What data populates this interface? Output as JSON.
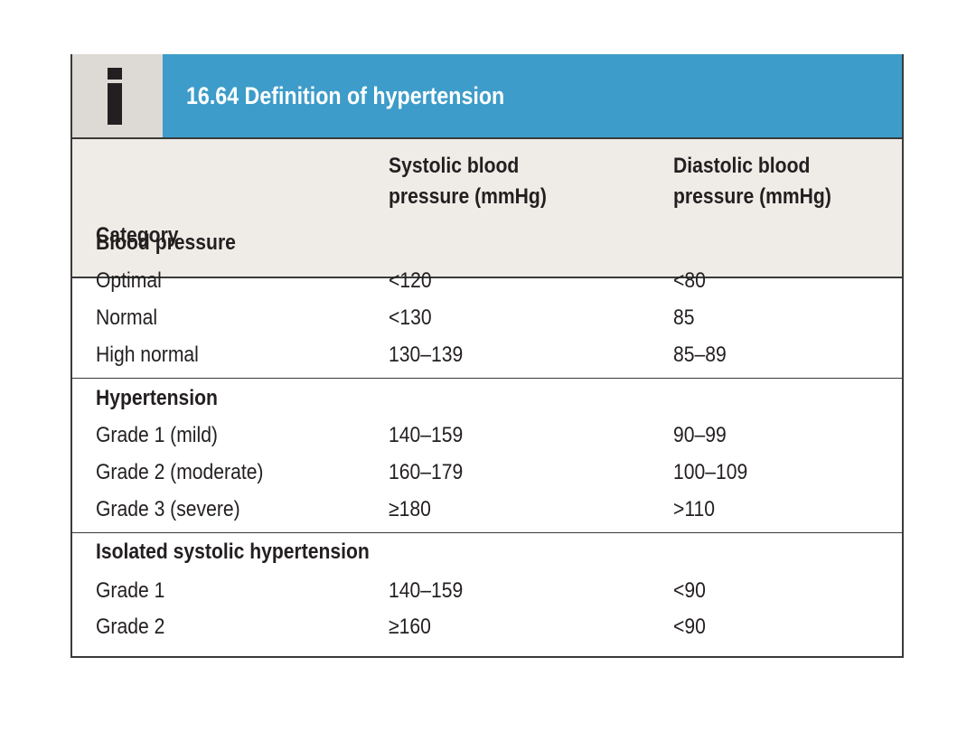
{
  "box": {
    "title": "16.64  Definition of hypertension",
    "icon": "info-i-icon"
  },
  "columns": {
    "category": "Category",
    "systolic_line1": "Systolic blood",
    "systolic_line2": "pressure (mmHg)",
    "diastolic_line1": "Diastolic blood",
    "diastolic_line2": "pressure (mmHg)"
  },
  "sections": [
    {
      "heading": "Blood pressure",
      "rows": [
        {
          "category": "Optimal",
          "systolic": "<120",
          "diastolic": "<80"
        },
        {
          "category": "Normal",
          "systolic": "<130",
          "diastolic": "85"
        },
        {
          "category": "High normal",
          "systolic": "130–139",
          "diastolic": "85–89"
        }
      ]
    },
    {
      "heading": "Hypertension",
      "rows": [
        {
          "category": "Grade 1 (mild)",
          "systolic": "140–159",
          "diastolic": "90–99"
        },
        {
          "category": "Grade 2 (moderate)",
          "systolic": "160–179",
          "diastolic": "100–109"
        },
        {
          "category": "Grade 3 (severe)",
          "systolic": "≥180",
          "diastolic": ">110"
        }
      ]
    },
    {
      "heading": "Isolated systolic hypertension",
      "rows": [
        {
          "category": "Grade 1",
          "systolic": "140–159",
          "diastolic": "<90"
        },
        {
          "category": "Grade 2",
          "systolic": "≥160",
          "diastolic": "<90"
        }
      ]
    }
  ],
  "colors": {
    "title_bar": "#3d9cc9",
    "icon_bg": "#ddd9d4",
    "header_bg": "#efece8"
  }
}
